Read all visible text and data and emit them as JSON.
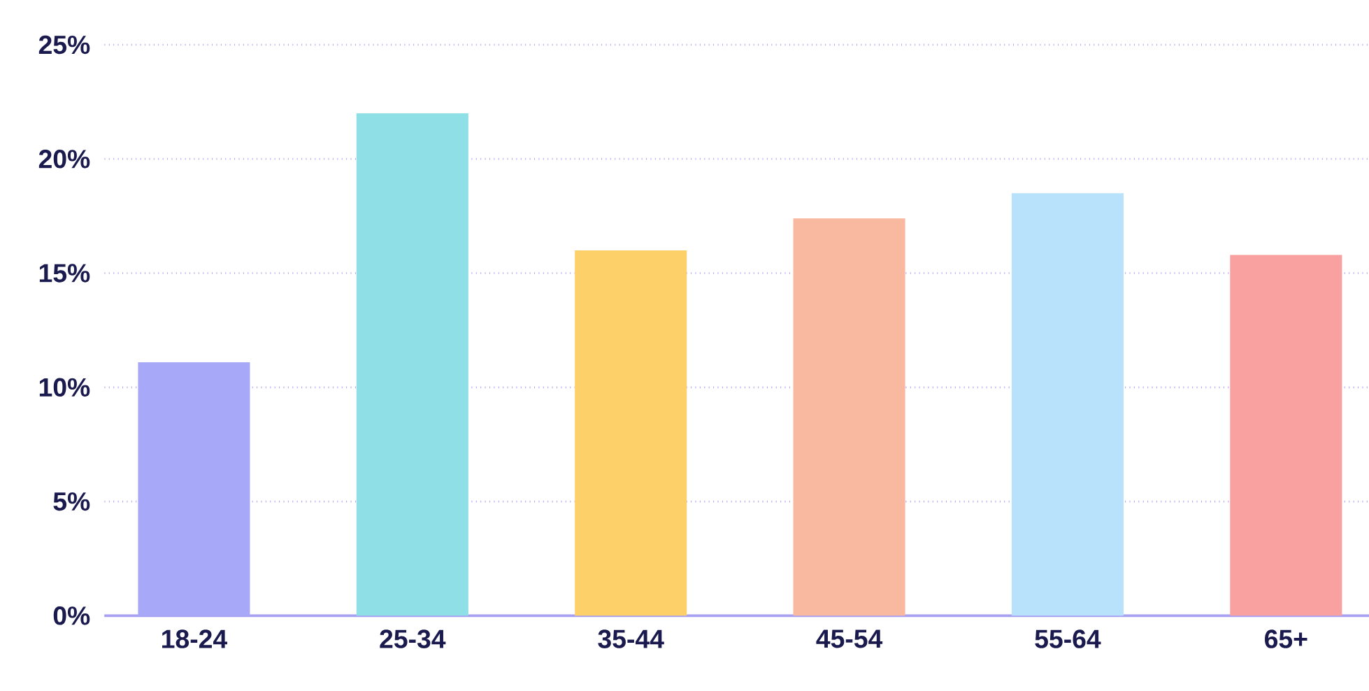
{
  "chart_data": {
    "type": "bar",
    "categories": [
      "18-24",
      "25-34",
      "35-44",
      "45-54",
      "55-64",
      "65+"
    ],
    "values": [
      11.1,
      22.0,
      16.0,
      17.4,
      18.5,
      15.8
    ],
    "colors": [
      "#a8a8f8",
      "#8fdfe6",
      "#fdd06a",
      "#f9b8a0",
      "#b8e2fc",
      "#f9a0a0"
    ],
    "ylim": [
      0,
      25
    ],
    "yticks": [
      {
        "value": 0,
        "label": "0%"
      },
      {
        "value": 5,
        "label": "5%"
      },
      {
        "value": 10,
        "label": "10%"
      },
      {
        "value": 15,
        "label": "15%"
      },
      {
        "value": 20,
        "label": "20%"
      },
      {
        "value": 25,
        "label": "25%"
      }
    ],
    "grid": "y"
  }
}
